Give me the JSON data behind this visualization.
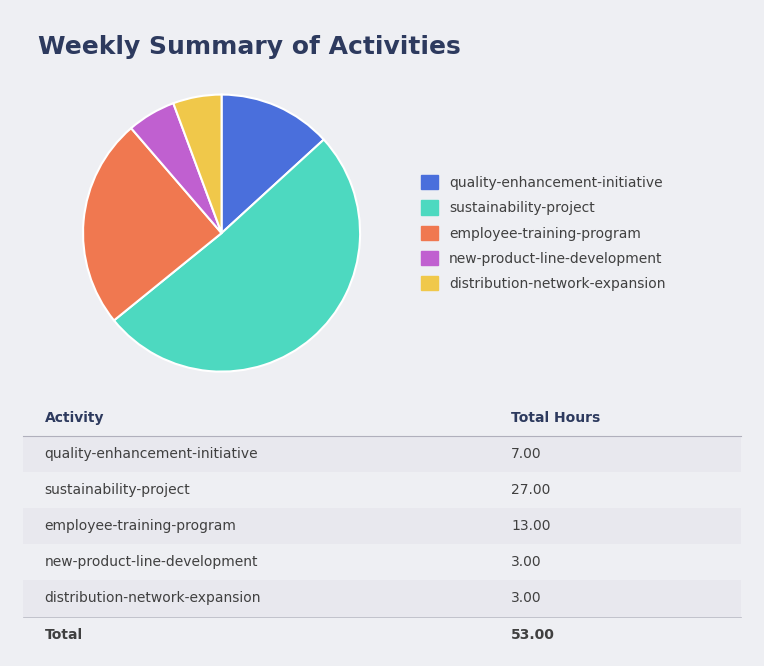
{
  "title": "Weekly Summary of Activities",
  "activities": [
    "quality-enhancement-initiative",
    "sustainability-project",
    "employee-training-program",
    "new-product-line-development",
    "distribution-network-expansion"
  ],
  "hours": [
    7.0,
    27.0,
    13.0,
    3.0,
    3.0
  ],
  "total": 53.0,
  "colors": [
    "#4a6fdc",
    "#4dd9c0",
    "#f07850",
    "#c060d0",
    "#f0c84a"
  ],
  "background_color": "#eeeff3",
  "card_color": "#ffffff",
  "title_color": "#2d3a5e",
  "table_header_color": "#2d3a5e",
  "table_row_odd_color": "#e8e8ee",
  "table_row_even_color": "#f5f5f8",
  "table_text_color": "#404040",
  "title_fontsize": 18,
  "legend_fontsize": 10,
  "table_fontsize": 10
}
